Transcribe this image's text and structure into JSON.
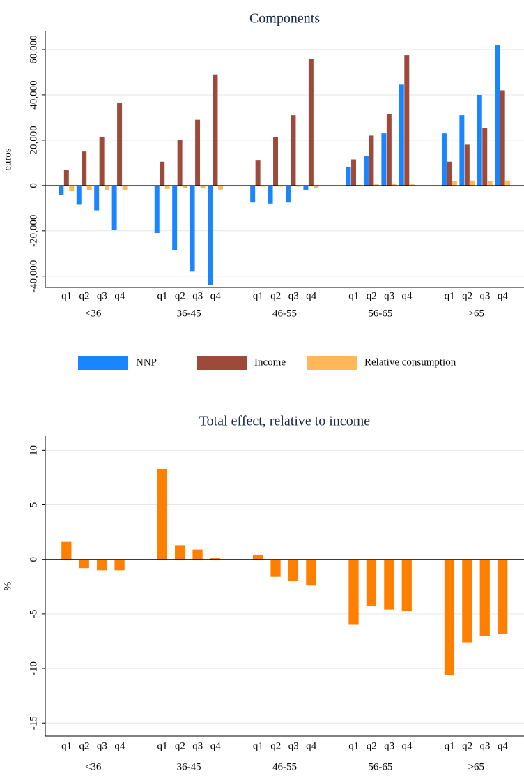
{
  "chart_data": [
    {
      "type": "bar",
      "title": "Components",
      "y_label": "euros",
      "groups": [
        "<36",
        "36-45",
        "46-55",
        "56-65",
        ">65"
      ],
      "subcategories": [
        "q1",
        "q2",
        "q3",
        "q4"
      ],
      "series": [
        {
          "name": "NNP",
          "color": "#1a85ff",
          "values": [
            -4300,
            -8500,
            -11000,
            -19500,
            -21000,
            -28500,
            -38000,
            -44000,
            -7500,
            -8000,
            -7500,
            -2000,
            8000,
            13000,
            23000,
            44500,
            23000,
            31000,
            40000,
            62000
          ]
        },
        {
          "name": "Income",
          "color": "#9e4a3a",
          "values": [
            7000,
            15000,
            21500,
            36500,
            10500,
            20000,
            29000,
            49000,
            11000,
            21500,
            31000,
            56000,
            11500,
            22000,
            31500,
            57500,
            10500,
            18000,
            25500,
            42000
          ]
        },
        {
          "name": "Relative consumption",
          "color": "#ffb75a",
          "values": [
            -2500,
            -2200,
            -2200,
            -2200,
            -1500,
            -1300,
            -1000,
            -1800,
            -500,
            -500,
            -500,
            -1200,
            300,
            500,
            800,
            500,
            2000,
            2200,
            2000,
            2200
          ]
        }
      ],
      "ylim": [
        -45000,
        68000
      ],
      "yticks": [
        {
          "value": -40000,
          "label": "-40,000"
        },
        {
          "value": -20000,
          "label": "-20,000"
        },
        0,
        {
          "value": 20000,
          "label": "20,000"
        },
        {
          "value": 40000,
          "label": "40,000"
        },
        {
          "value": 60000,
          "label": "60,000"
        }
      ],
      "grid": true,
      "legend": "bottom"
    },
    {
      "type": "bar",
      "title": "Total effect, relative to income",
      "y_label": "%",
      "groups": [
        "<36",
        "36-45",
        "46-55",
        "56-65",
        ">65"
      ],
      "subcategories": [
        "q1",
        "q2",
        "q3",
        "q4"
      ],
      "values": [
        1.6,
        -0.8,
        -1.0,
        -1.0,
        8.3,
        1.3,
        0.9,
        0.1,
        0.4,
        -1.6,
        -2.0,
        -2.4,
        -6.0,
        -4.3,
        -4.6,
        -4.7,
        -10.6,
        -7.6,
        -7.0,
        -6.8
      ],
      "color": "#ff8000",
      "ylim": [
        -16.2,
        11.3
      ],
      "yticks": [
        -15,
        -10,
        -5,
        0,
        5,
        10
      ],
      "grid": true
    }
  ]
}
